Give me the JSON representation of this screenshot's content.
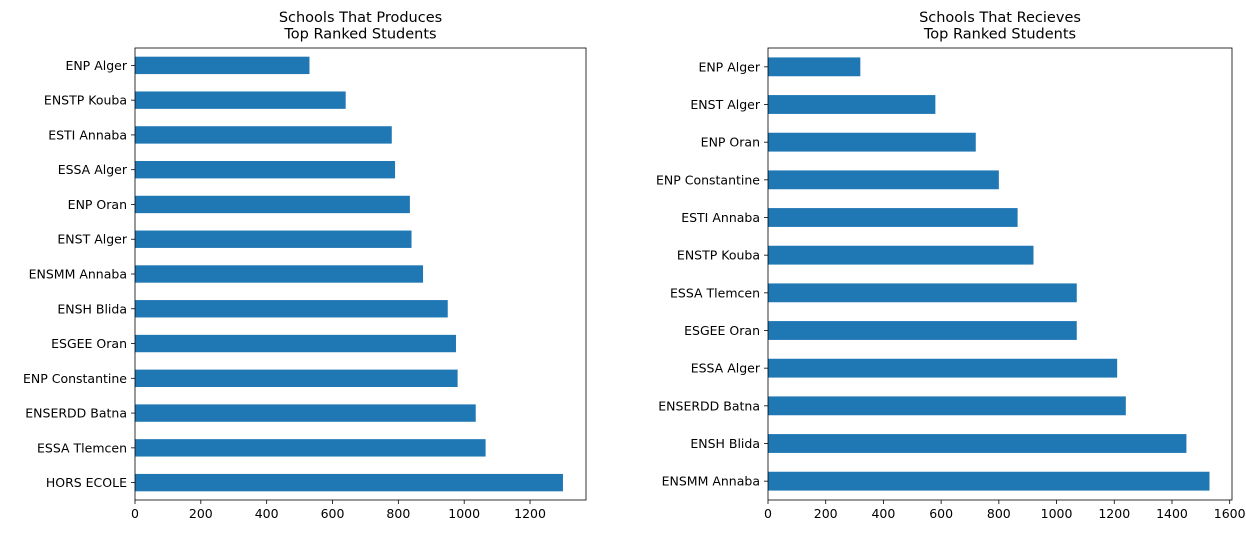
{
  "chart_data": [
    {
      "type": "bar",
      "orientation": "horizontal",
      "title_lines": [
        "Schools That Produces",
        "Top Ranked Students"
      ],
      "categories": [
        "ENP Alger",
        "ENSTP Kouba",
        "ESTI Annaba",
        "ESSA Alger",
        "ENP Oran",
        "ENST Alger",
        "ENSMM Annaba",
        "ENSH Blida",
        "ESGEE Oran",
        "ENP Constantine",
        "ENSERDD Batna",
        "ESSA Tlemcen",
        "HORS ECOLE"
      ],
      "values": [
        530,
        640,
        780,
        790,
        835,
        840,
        875,
        950,
        975,
        980,
        1035,
        1065,
        1300
      ],
      "xlim": [
        0,
        1370
      ],
      "xticks": [
        0,
        200,
        400,
        600,
        800,
        1000,
        1200
      ],
      "xlabel": "",
      "ylabel": "",
      "grid": false,
      "bar_color": "#1f77b4"
    },
    {
      "type": "bar",
      "orientation": "horizontal",
      "title_lines": [
        "Schools That Recieves",
        "Top Ranked Students"
      ],
      "categories": [
        "ENP Alger",
        "ENST Alger",
        "ENP Oran",
        "ENP Constantine",
        "ESTI Annaba",
        "ENSTP Kouba",
        "ESSA Tlemcen",
        "ESGEE Oran",
        "ESSA Alger",
        "ENSERDD Batna",
        "ENSH Blida",
        "ENSMM Annaba"
      ],
      "values": [
        320,
        580,
        720,
        800,
        865,
        920,
        1070,
        1070,
        1210,
        1240,
        1450,
        1530
      ],
      "xlim": [
        0,
        1608
      ],
      "xticks": [
        0,
        200,
        400,
        600,
        800,
        1000,
        1200,
        1400,
        1600
      ],
      "xlabel": "",
      "ylabel": "",
      "grid": false,
      "bar_color": "#1f77b4"
    }
  ]
}
